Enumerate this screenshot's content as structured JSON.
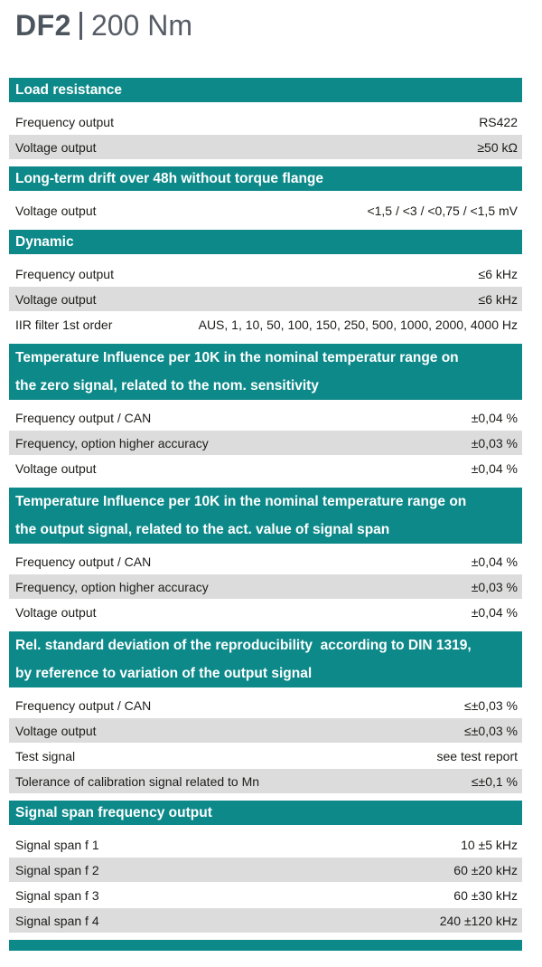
{
  "title": {
    "model": "DF2",
    "separator": "|",
    "capacity": "200 Nm"
  },
  "colors": {
    "teal": "#0d8989",
    "row_gray": "#dcdcdc",
    "text": "#1c1c1a",
    "title_dark": "#4c545e",
    "title_light": "#565d66",
    "header_text": "#ffffff"
  },
  "sections": [
    {
      "title_lines": [
        "Load resistance"
      ],
      "rows": [
        {
          "label": "Frequency output",
          "value": "RS422",
          "shaded": false
        },
        {
          "label": "Voltage output",
          "value": "≥50 kΩ",
          "shaded": true
        }
      ]
    },
    {
      "title_lines": [
        "Long-term drift over 48h without torque flange"
      ],
      "rows": [
        {
          "label": "Voltage output",
          "value": "<1,5 / <3 / <0,75 / <1,5 mV",
          "shaded": false
        }
      ]
    },
    {
      "title_lines": [
        "Dynamic"
      ],
      "rows": [
        {
          "label": "Frequency output",
          "value": "≤6 kHz",
          "shaded": false
        },
        {
          "label": "Voltage output",
          "value": "≤6 kHz",
          "shaded": true
        },
        {
          "label": "IIR filter 1st order",
          "value": "AUS, 1, 10, 50, 100, 150, 250, 500, 1000, 2000, 4000 Hz",
          "shaded": false
        }
      ]
    },
    {
      "title_lines": [
        "Temperature Influence per 10K in the nominal temperatur range on",
        "the zero signal, related to the nom. sensitivity"
      ],
      "rows": [
        {
          "label": "Frequency output / CAN",
          "value": "±0,04 %",
          "shaded": false
        },
        {
          "label": "Frequency, option higher accuracy",
          "value": "±0,03 %",
          "shaded": true
        },
        {
          "label": "Voltage output",
          "value": "±0,04 %",
          "shaded": false
        }
      ]
    },
    {
      "title_lines": [
        "Temperature Influence per 10K in the nominal temperature range on",
        "the output signal, related to the act. value of signal span"
      ],
      "rows": [
        {
          "label": "Frequency output / CAN",
          "value": "±0,04 %",
          "shaded": false
        },
        {
          "label": "Frequency, option higher accuracy",
          "value": "±0,03 %",
          "shaded": true
        },
        {
          "label": "Voltage output",
          "value": "±0,04 %",
          "shaded": false
        }
      ]
    },
    {
      "title_lines": [
        "Rel. standard deviation of the reproducibility  according to DIN 1319,",
        "by reference to variation of the output signal"
      ],
      "rows": [
        {
          "label": "Frequency output / CAN",
          "value": "≤±0,03 %",
          "shaded": false
        },
        {
          "label": "Voltage output",
          "value": "≤±0,03 %",
          "shaded": true
        },
        {
          "label": "Test signal",
          "value": "see test report",
          "shaded": false
        },
        {
          "label": "Tolerance of calibration signal related to Mn",
          "value": "≤±0,1 %",
          "shaded": true
        }
      ]
    },
    {
      "title_lines": [
        "Signal span frequency output"
      ],
      "rows": [
        {
          "label": "Signal span f 1",
          "value": "10 ±5 kHz",
          "shaded": false
        },
        {
          "label": "Signal span f 2",
          "value": "60 ±20 kHz",
          "shaded": true
        },
        {
          "label": "Signal span f 3",
          "value": "60 ±30 kHz",
          "shaded": false
        },
        {
          "label": "Signal span f 4",
          "value": "240 ±120 kHz",
          "shaded": true
        }
      ]
    },
    {
      "partial": true,
      "title_lines": [],
      "rows": []
    }
  ]
}
